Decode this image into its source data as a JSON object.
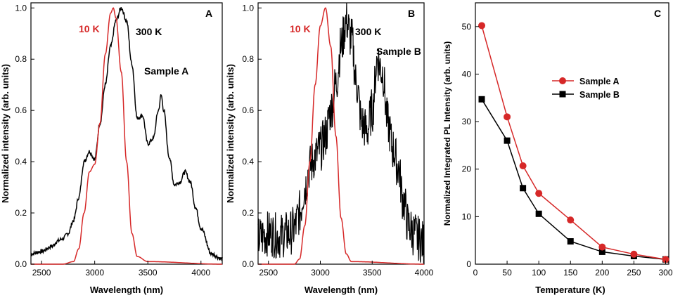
{
  "colors": {
    "red": "#d62828",
    "black": "#000000"
  },
  "chart_data": [
    {
      "type": "line",
      "panel": "A",
      "xlabel": "Wavelength (nm)",
      "ylabel": "Normalized intensity (arb. units)",
      "xlim": [
        2400,
        4200
      ],
      "ylim": [
        0.0,
        1.02
      ],
      "xticks": [
        "2500",
        "3000",
        "3500",
        "4000"
      ],
      "yticks": [
        "0.0",
        "0.2",
        "0.4",
        "0.6",
        "0.8",
        "1.0"
      ],
      "annotations": [
        {
          "text": "10 K",
          "color": "red"
        },
        {
          "text": "300 K",
          "color": "black"
        },
        {
          "text": "Sample A",
          "color": "black"
        }
      ],
      "series": [
        {
          "name": "10 K",
          "color": "red",
          "x": [
            2400,
            2700,
            2800,
            2850,
            2900,
            2950,
            3000,
            3050,
            3100,
            3150,
            3175,
            3200,
            3250,
            3300,
            3350,
            3400,
            3500,
            4200
          ],
          "y": [
            0.0,
            0.0,
            0.01,
            0.06,
            0.2,
            0.36,
            0.39,
            0.55,
            0.82,
            0.98,
            1.0,
            0.96,
            0.75,
            0.4,
            0.12,
            0.03,
            0.01,
            0.0
          ]
        },
        {
          "name": "300 K",
          "color": "black",
          "x": [
            2400,
            2500,
            2600,
            2650,
            2700,
            2750,
            2800,
            2850,
            2900,
            2950,
            3000,
            3050,
            3100,
            3150,
            3200,
            3250,
            3300,
            3350,
            3400,
            3450,
            3500,
            3550,
            3600,
            3625,
            3650,
            3700,
            3750,
            3800,
            3850,
            3900,
            3950,
            4000,
            4100,
            4200
          ],
          "y": [
            0.04,
            0.05,
            0.07,
            0.09,
            0.1,
            0.12,
            0.17,
            0.26,
            0.4,
            0.44,
            0.41,
            0.55,
            0.7,
            0.85,
            0.95,
            1.0,
            0.95,
            0.78,
            0.57,
            0.58,
            0.47,
            0.49,
            0.6,
            0.66,
            0.6,
            0.42,
            0.31,
            0.32,
            0.36,
            0.32,
            0.22,
            0.14,
            0.04,
            0.02
          ]
        }
      ]
    },
    {
      "type": "line",
      "panel": "B",
      "xlabel": "Wavelength (nm)",
      "ylabel": "Normalized intensity (arb. units)",
      "xlim": [
        2400,
        4000
      ],
      "ylim": [
        0.0,
        1.02
      ],
      "xticks": [
        "2500",
        "3000",
        "3500",
        "4000"
      ],
      "yticks": [
        "0.0",
        "0.2",
        "0.4",
        "0.6",
        "0.8",
        "1.0"
      ],
      "annotations": [
        {
          "text": "10 K",
          "color": "red"
        },
        {
          "text": "300 K",
          "color": "black"
        },
        {
          "text": "Sample B",
          "color": "black"
        }
      ],
      "series": [
        {
          "name": "10 K",
          "color": "red",
          "x": [
            2400,
            2750,
            2800,
            2850,
            2900,
            2950,
            3000,
            3050,
            3100,
            3150,
            3200,
            3250,
            3300,
            4000
          ],
          "y": [
            0.0,
            0.0,
            0.02,
            0.15,
            0.4,
            0.7,
            0.93,
            1.0,
            0.85,
            0.5,
            0.18,
            0.04,
            0.01,
            0.0
          ]
        },
        {
          "name": "300 K",
          "color": "black",
          "x": [
            2400,
            2500,
            2600,
            2700,
            2750,
            2800,
            2850,
            2900,
            2950,
            3000,
            3050,
            3100,
            3150,
            3200,
            3250,
            3300,
            3350,
            3400,
            3450,
            3500,
            3550,
            3600,
            3650,
            3700,
            3750,
            3800,
            3850,
            3900,
            3950,
            4000
          ],
          "y": [
            0.1,
            0.12,
            0.11,
            0.12,
            0.14,
            0.2,
            0.3,
            0.38,
            0.42,
            0.45,
            0.5,
            0.6,
            0.7,
            0.85,
            0.95,
            0.88,
            0.7,
            0.55,
            0.52,
            0.6,
            0.8,
            0.75,
            0.55,
            0.45,
            0.38,
            0.25,
            0.15,
            0.12,
            0.1,
            0.08
          ]
        }
      ]
    },
    {
      "type": "line",
      "panel": "C",
      "xlabel": "Temperature (K)",
      "ylabel": "Normalized Integrated PL Intensity (arb. units)",
      "xlim": [
        0,
        305
      ],
      "ylim": [
        0,
        55
      ],
      "xticks": [
        "0",
        "50",
        "100",
        "150",
        "200",
        "250",
        "300"
      ],
      "yticks": [
        "0",
        "10",
        "20",
        "30",
        "40",
        "50"
      ],
      "legend_position": "upper-right",
      "series": [
        {
          "name": "Sample A",
          "color": "red",
          "marker": "circle",
          "x": [
            10,
            50,
            75,
            100,
            150,
            200,
            250,
            300
          ],
          "y": [
            50.2,
            31,
            20.7,
            14.9,
            9.3,
            3.6,
            2.1,
            1.0
          ]
        },
        {
          "name": "Sample B",
          "color": "black",
          "marker": "square",
          "x": [
            10,
            50,
            75,
            100,
            150,
            200,
            250,
            300
          ],
          "y": [
            34.7,
            26,
            16,
            10.6,
            4.8,
            2.6,
            1.7,
            1.0
          ]
        }
      ]
    }
  ]
}
